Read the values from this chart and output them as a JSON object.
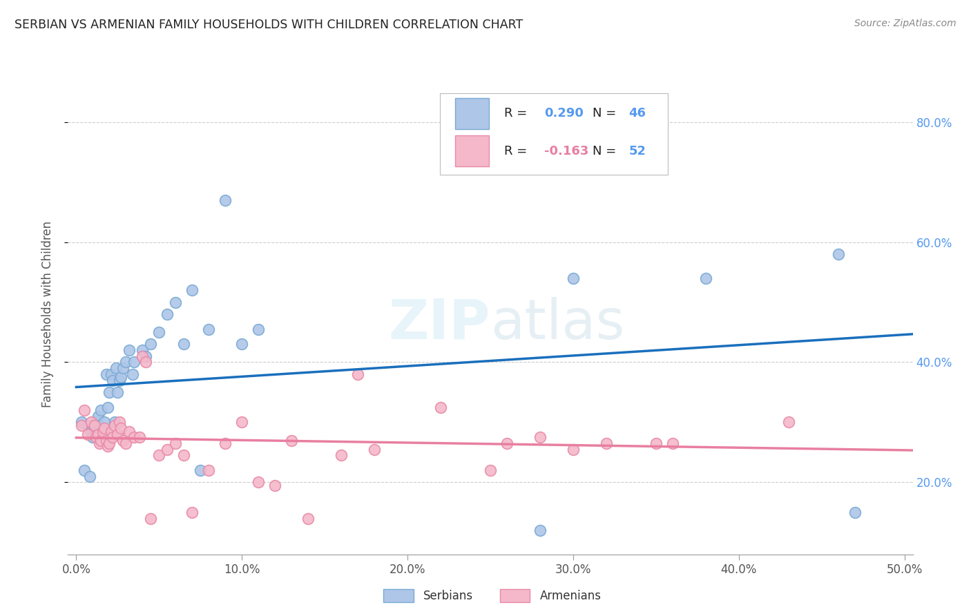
{
  "title": "SERBIAN VS ARMENIAN FAMILY HOUSEHOLDS WITH CHILDREN CORRELATION CHART",
  "source": "Source: ZipAtlas.com",
  "xlim": [
    -0.005,
    0.505
  ],
  "ylim": [
    0.08,
    0.88
  ],
  "watermark": "ZIPatlas",
  "serbian_color": "#aec6e8",
  "armenian_color": "#f4b8ca",
  "serbian_edge_color": "#7aaad4",
  "armenian_edge_color": "#e88aa8",
  "serbian_line_color": "#1a6fbd",
  "armenian_line_color": "#e87fa0",
  "serbian_R": "0.290",
  "serbian_N": "46",
  "armenian_R": "-0.163",
  "armenian_N": "52",
  "serbian_scatter_x": [
    0.003,
    0.005,
    0.007,
    0.008,
    0.009,
    0.01,
    0.011,
    0.012,
    0.013,
    0.014,
    0.015,
    0.016,
    0.017,
    0.018,
    0.019,
    0.02,
    0.021,
    0.022,
    0.023,
    0.024,
    0.025,
    0.026,
    0.027,
    0.028,
    0.03,
    0.032,
    0.034,
    0.035,
    0.04,
    0.042,
    0.045,
    0.05,
    0.055,
    0.06,
    0.065,
    0.07,
    0.075,
    0.08,
    0.09,
    0.1,
    0.11,
    0.28,
    0.3,
    0.38,
    0.46,
    0.47
  ],
  "serbian_scatter_y": [
    0.3,
    0.22,
    0.295,
    0.21,
    0.285,
    0.275,
    0.29,
    0.3,
    0.31,
    0.295,
    0.32,
    0.29,
    0.3,
    0.38,
    0.325,
    0.35,
    0.38,
    0.37,
    0.3,
    0.39,
    0.35,
    0.37,
    0.375,
    0.39,
    0.4,
    0.42,
    0.38,
    0.4,
    0.42,
    0.41,
    0.43,
    0.45,
    0.48,
    0.5,
    0.43,
    0.52,
    0.22,
    0.455,
    0.67,
    0.43,
    0.455,
    0.12,
    0.54,
    0.54,
    0.58,
    0.15
  ],
  "armenian_scatter_x": [
    0.003,
    0.005,
    0.007,
    0.009,
    0.011,
    0.012,
    0.013,
    0.014,
    0.015,
    0.016,
    0.017,
    0.018,
    0.019,
    0.02,
    0.021,
    0.022,
    0.023,
    0.025,
    0.026,
    0.027,
    0.028,
    0.03,
    0.032,
    0.035,
    0.038,
    0.04,
    0.042,
    0.045,
    0.05,
    0.055,
    0.06,
    0.065,
    0.07,
    0.08,
    0.09,
    0.1,
    0.11,
    0.12,
    0.13,
    0.14,
    0.16,
    0.17,
    0.18,
    0.22,
    0.25,
    0.26,
    0.28,
    0.3,
    0.32,
    0.35,
    0.36,
    0.43
  ],
  "armenian_scatter_y": [
    0.295,
    0.32,
    0.28,
    0.3,
    0.295,
    0.275,
    0.28,
    0.265,
    0.27,
    0.285,
    0.29,
    0.27,
    0.26,
    0.265,
    0.285,
    0.275,
    0.295,
    0.28,
    0.3,
    0.29,
    0.27,
    0.265,
    0.285,
    0.275,
    0.275,
    0.41,
    0.4,
    0.14,
    0.245,
    0.255,
    0.265,
    0.245,
    0.15,
    0.22,
    0.265,
    0.3,
    0.2,
    0.195,
    0.27,
    0.14,
    0.245,
    0.38,
    0.255,
    0.325,
    0.22,
    0.265,
    0.275,
    0.255,
    0.265,
    0.265,
    0.265,
    0.3
  ],
  "background_color": "#ffffff",
  "grid_color": "#cccccc",
  "ytick_vals": [
    0.2,
    0.4,
    0.6,
    0.8
  ],
  "ytick_labels": [
    "20.0%",
    "40.0%",
    "60.0%",
    "80.0%"
  ],
  "xtick_vals": [
    0.0,
    0.1,
    0.2,
    0.3,
    0.4,
    0.5
  ],
  "xtick_labels": [
    "0.0%",
    "10.0%",
    "20.0%",
    "30.0%",
    "40.0%",
    "50.0%"
  ]
}
